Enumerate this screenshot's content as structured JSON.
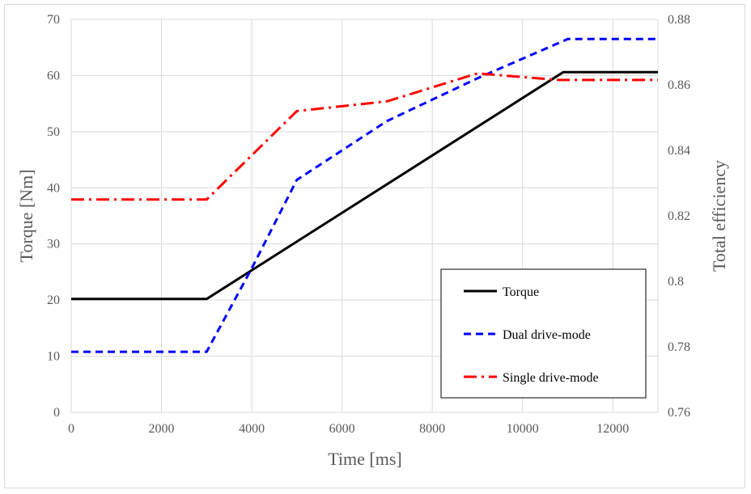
{
  "chart_data": {
    "type": "line",
    "xlabel": "Time [ms]",
    "ylabel": "Torque [Nm]",
    "y2label": "Total efficiency",
    "xlim": [
      0,
      13000
    ],
    "ylim": [
      0,
      70
    ],
    "y2lim": [
      0.76,
      0.88
    ],
    "x_ticks": [
      "0",
      "2000",
      "4000",
      "6000",
      "8000",
      "10000",
      "12000"
    ],
    "y_ticks": [
      "0",
      "10",
      "20",
      "30",
      "40",
      "50",
      "60",
      "70"
    ],
    "y2_ticks": [
      "0.76",
      "0.78",
      "0.8",
      "0.82",
      "0.84",
      "0.86",
      "0.88"
    ],
    "grid": true,
    "legend_position": "bottom-right",
    "series": [
      {
        "name": "Torque",
        "axis": "left",
        "color": "#000000",
        "style": "solid",
        "points": [
          [
            0,
            20.2
          ],
          [
            3000,
            20.2
          ],
          [
            10900,
            60.6
          ],
          [
            13000,
            60.6
          ]
        ]
      },
      {
        "name": "Dual drive-mode",
        "axis": "right",
        "color": "#0000ff",
        "style": "dashed",
        "points": [
          [
            0,
            0.7785
          ],
          [
            3000,
            0.7785
          ],
          [
            4000,
            0.804
          ],
          [
            5000,
            0.831
          ],
          [
            7000,
            0.849
          ],
          [
            9000,
            0.862
          ],
          [
            11000,
            0.874
          ],
          [
            13000,
            0.874
          ]
        ]
      },
      {
        "name": "Single drive-mode",
        "axis": "right",
        "color": "#ff0000",
        "style": "dash-dot",
        "points": [
          [
            0,
            0.825
          ],
          [
            3000,
            0.825
          ],
          [
            5000,
            0.852
          ],
          [
            7000,
            0.855
          ],
          [
            9000,
            0.8635
          ],
          [
            10800,
            0.8615
          ],
          [
            13000,
            0.8615
          ]
        ]
      }
    ]
  }
}
